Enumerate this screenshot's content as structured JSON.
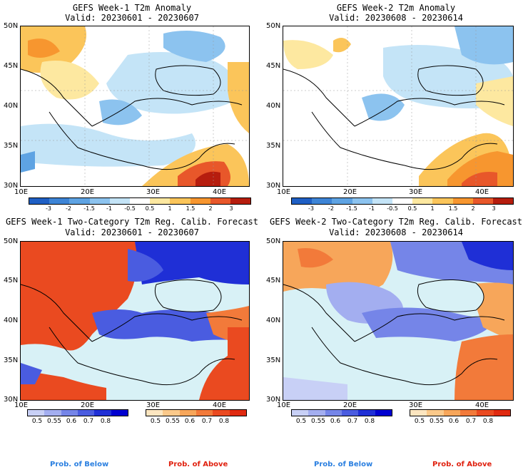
{
  "panels": {
    "w1_anom": {
      "title": "GEFS Week-1 T2m Anomaly",
      "valid": "Valid: 20230601 - 20230607"
    },
    "w2_anom": {
      "title": "GEFS Week-2 T2m Anomaly",
      "valid": "Valid: 20230608 - 20230614"
    },
    "w1_prob": {
      "title": "GEFS Week-1 Two-Category T2m Reg. Calib. Forecast",
      "valid": "Valid: 20230601 - 20230607"
    },
    "w2_prob": {
      "title": "GEFS Week-2 Two-Category T2m Reg. Calib. Forecast",
      "valid": "Valid: 20230608 - 20230614"
    }
  },
  "lat_labels": [
    "50N",
    "45N",
    "40N",
    "35N",
    "30N"
  ],
  "lon_labels": [
    "10E",
    "20E",
    "30E",
    "40E"
  ],
  "anomaly_colorbar": {
    "ticks": [
      "-3",
      "-2",
      "-1.5",
      "-1",
      "-0.5",
      "0.5",
      "1",
      "1.5",
      "2",
      "3"
    ],
    "colors": [
      "#1f5fc4",
      "#3d84d6",
      "#5ea3e3",
      "#8cc3ef",
      "#c4e4f7",
      "#ffffff",
      "#fde8a0",
      "#fbc55a",
      "#f7962f",
      "#e8572a",
      "#b61d0e"
    ]
  },
  "below_colorbar": {
    "ticks": [
      "0.5",
      "0.55",
      "0.6",
      "0.7",
      "0.8"
    ],
    "colors": [
      "#c8d0f6",
      "#a3aef0",
      "#7585e8",
      "#4a5ce0",
      "#1f2fd6",
      "#0000d0"
    ]
  },
  "above_colorbar": {
    "ticks": [
      "0.5",
      "0.55",
      "0.6",
      "0.7",
      "0.8"
    ],
    "colors": [
      "#fde6c0",
      "#fbc98a",
      "#f7a65a",
      "#f27a3a",
      "#ea4a20",
      "#e02a10"
    ]
  },
  "footer": {
    "below_label": "Prob. of Below",
    "above_label": "Prob. of Above"
  },
  "colors": {
    "below_text": "#2a7fe0",
    "above_text": "#e0210f",
    "sea_light": "#d8f1f6"
  }
}
